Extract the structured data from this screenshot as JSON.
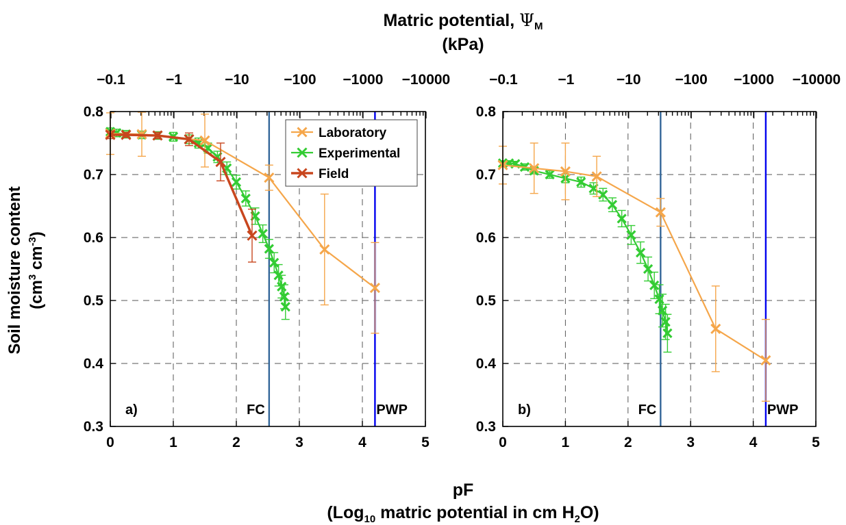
{
  "figure": {
    "top_title_line1": "Matric potential, ",
    "top_title_symbol": "Ψ",
    "top_title_sub": "M",
    "top_title_line2": "(kPa)",
    "ylabel_line1": "Soil moisture content",
    "ylabel_line2_a": "(cm",
    "ylabel_line2_sup1": "3",
    "ylabel_line2_b": " cm",
    "ylabel_line2_sup2": "-3",
    "ylabel_line2_c": ")",
    "xlabel_line1": "pF",
    "xlabel_line2_a": "(Log",
    "xlabel_line2_sub1": "10",
    "xlabel_line2_b": " matric potential in cm H",
    "xlabel_line2_sub2": "2",
    "xlabel_line2_c": "O)"
  },
  "colors": {
    "laboratory": "#F5A64A",
    "experimental": "#33CC33",
    "field": "#C8461E",
    "fc_line": "#336699",
    "pwp_line": "#0000EE"
  },
  "chart_data": [
    {
      "type": "line",
      "panel_label": "a)",
      "xlim": [
        0,
        5
      ],
      "ylim": [
        0.3,
        0.8
      ],
      "x_ticks": [
        "0",
        "1",
        "2",
        "3",
        "4",
        "5"
      ],
      "y_ticks": [
        "0.3",
        "0.4",
        "0.5",
        "0.6",
        "0.7",
        "0.8"
      ],
      "top_axis_ticks": [
        "−0.1",
        "−1",
        "−10",
        "−100",
        "−1000",
        "−10000"
      ],
      "grid": true,
      "legend_position": "top-right",
      "legend": [
        "Laboratory",
        "Experimental",
        "Field"
      ],
      "vlines": [
        {
          "label": "FC",
          "x": 2.52,
          "color_key": "fc_line"
        },
        {
          "label": "PWP",
          "x": 4.2,
          "color_key": "pwp_line"
        }
      ],
      "series": [
        {
          "name": "Laboratory",
          "color_key": "laboratory",
          "x": [
            0,
            0.5,
            1.5,
            2.52,
            3.4,
            4.2
          ],
          "y": [
            0.765,
            0.764,
            0.754,
            0.695,
            0.581,
            0.52
          ],
          "err": [
            0.033,
            0.035,
            0.042,
            0.02,
            0.088,
            0.072
          ]
        },
        {
          "name": "Experimental",
          "color_key": "experimental",
          "x": [
            0.0,
            0.1,
            0.25,
            0.5,
            0.75,
            1.0,
            1.25,
            1.4,
            1.55,
            1.7,
            1.85,
            2.0,
            2.15,
            2.3,
            2.42,
            2.52,
            2.6,
            2.67,
            2.72,
            2.76,
            2.78
          ],
          "y": [
            0.768,
            0.766,
            0.764,
            0.763,
            0.762,
            0.76,
            0.756,
            0.75,
            0.742,
            0.728,
            0.71,
            0.688,
            0.662,
            0.634,
            0.606,
            0.582,
            0.56,
            0.54,
            0.522,
            0.506,
            0.49
          ],
          "err": [
            0.006,
            0.006,
            0.006,
            0.006,
            0.006,
            0.007,
            0.007,
            0.008,
            0.008,
            0.009,
            0.01,
            0.011,
            0.012,
            0.013,
            0.014,
            0.015,
            0.016,
            0.017,
            0.018,
            0.019,
            0.02
          ]
        },
        {
          "name": "Field",
          "color_key": "field",
          "x": [
            0,
            0.25,
            0.75,
            1.25,
            1.75,
            2.25
          ],
          "y": [
            0.763,
            0.763,
            0.762,
            0.756,
            0.72,
            0.603
          ],
          "err": [
            0.006,
            0.004,
            0.005,
            0.01,
            0.03,
            0.042
          ]
        }
      ]
    },
    {
      "type": "line",
      "panel_label": "b)",
      "xlim": [
        0,
        5
      ],
      "ylim": [
        0.3,
        0.8
      ],
      "x_ticks": [
        "0",
        "1",
        "2",
        "3",
        "4",
        "5"
      ],
      "y_ticks": [
        "0.3",
        "0.4",
        "0.5",
        "0.6",
        "0.7",
        "0.8"
      ],
      "top_axis_ticks": [
        "−0.1",
        "−1",
        "−10",
        "−100",
        "−1000",
        "−10000"
      ],
      "grid": true,
      "vlines": [
        {
          "label": "FC",
          "x": 2.52,
          "color_key": "fc_line"
        },
        {
          "label": "PWP",
          "x": 4.2,
          "color_key": "pwp_line"
        }
      ],
      "series": [
        {
          "name": "Laboratory",
          "color_key": "laboratory",
          "x": [
            0,
            0.5,
            1.0,
            1.5,
            2.52,
            3.4,
            4.2
          ],
          "y": [
            0.715,
            0.71,
            0.705,
            0.697,
            0.64,
            0.455,
            0.405
          ],
          "err": [
            0.03,
            0.04,
            0.045,
            0.032,
            0.022,
            0.068,
            0.065
          ]
        },
        {
          "name": "Experimental",
          "color_key": "experimental",
          "x": [
            0.0,
            0.1,
            0.2,
            0.35,
            0.5,
            0.75,
            1.0,
            1.25,
            1.45,
            1.6,
            1.75,
            1.9,
            2.05,
            2.2,
            2.32,
            2.42,
            2.5,
            2.55,
            2.6,
            2.63
          ],
          "y": [
            0.718,
            0.718,
            0.717,
            0.712,
            0.706,
            0.7,
            0.694,
            0.688,
            0.678,
            0.668,
            0.652,
            0.63,
            0.604,
            0.576,
            0.55,
            0.524,
            0.502,
            0.484,
            0.466,
            0.448
          ],
          "err": [
            0.004,
            0.004,
            0.004,
            0.005,
            0.005,
            0.006,
            0.007,
            0.008,
            0.009,
            0.01,
            0.011,
            0.013,
            0.015,
            0.017,
            0.019,
            0.021,
            0.023,
            0.026,
            0.028,
            0.03
          ]
        }
      ]
    }
  ]
}
